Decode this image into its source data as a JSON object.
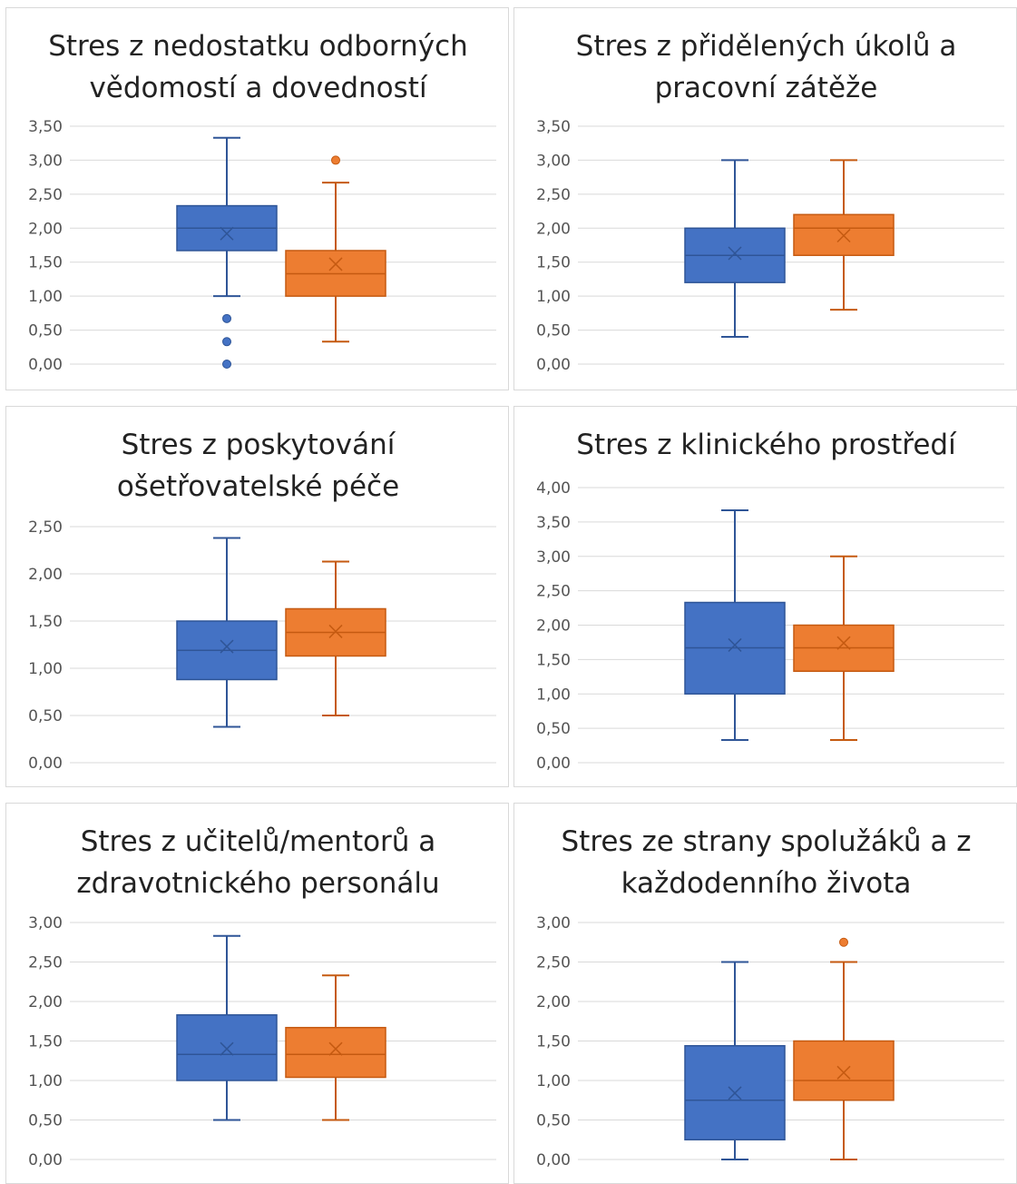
{
  "colors": {
    "series1": "#4472c4",
    "series1_stroke": "#2f5597",
    "series2": "#ed7d31",
    "series2_stroke": "#c55a11",
    "grid": "#d9d9d9"
  },
  "chart_data": [
    {
      "type": "boxplot",
      "title": [
        "Stres z nedostatku odborných",
        "vědomostí a dovedností"
      ],
      "ylim": [
        0,
        3.5
      ],
      "yticks": [
        "0,00",
        "0,50",
        "1,00",
        "1,50",
        "2,00",
        "2,50",
        "3,00",
        "3,50"
      ],
      "ytick_values": [
        0,
        0.5,
        1,
        1.5,
        2,
        2.5,
        3,
        3.5
      ],
      "series": [
        {
          "min": 1.0,
          "q1": 1.67,
          "median": 2.0,
          "q3": 2.33,
          "max": 3.33,
          "mean": 1.92,
          "outliers": [
            0.67,
            0.33,
            0.0
          ]
        },
        {
          "min": 0.33,
          "q1": 1.0,
          "median": 1.33,
          "q3": 1.67,
          "max": 2.67,
          "mean": 1.47,
          "outliers": [
            3.0
          ]
        }
      ]
    },
    {
      "type": "boxplot",
      "title": [
        "Stres z přidělených úkolů a",
        "pracovní zátěže"
      ],
      "ylim": [
        0,
        3.5
      ],
      "yticks": [
        "0,00",
        "0,50",
        "1,00",
        "1,50",
        "2,00",
        "2,50",
        "3,00",
        "3,50"
      ],
      "ytick_values": [
        0,
        0.5,
        1,
        1.5,
        2,
        2.5,
        3,
        3.5
      ],
      "series": [
        {
          "min": 0.4,
          "q1": 1.2,
          "median": 1.6,
          "q3": 2.0,
          "max": 3.0,
          "mean": 1.63,
          "outliers": []
        },
        {
          "min": 0.8,
          "q1": 1.6,
          "median": 2.0,
          "q3": 2.2,
          "max": 3.0,
          "mean": 1.89,
          "outliers": []
        }
      ]
    },
    {
      "type": "boxplot",
      "title": [
        "Stres z poskytování",
        "ošetřovatelské péče"
      ],
      "ylim": [
        0,
        2.5
      ],
      "yticks": [
        "0,00",
        "0,50",
        "1,00",
        "1,50",
        "2,00",
        "2,50"
      ],
      "ytick_values": [
        0,
        0.5,
        1,
        1.5,
        2,
        2.5
      ],
      "series": [
        {
          "min": 0.38,
          "q1": 0.88,
          "median": 1.19,
          "q3": 1.5,
          "max": 2.38,
          "mean": 1.23,
          "outliers": []
        },
        {
          "min": 0.5,
          "q1": 1.13,
          "median": 1.38,
          "q3": 1.63,
          "max": 2.13,
          "mean": 1.39,
          "outliers": []
        }
      ]
    },
    {
      "type": "boxplot",
      "title": [
        "Stres z klinického prostředí"
      ],
      "ylim": [
        0,
        4.0
      ],
      "yticks": [
        "0,00",
        "0,50",
        "1,00",
        "1,50",
        "2,00",
        "2,50",
        "3,00",
        "3,50",
        "4,00"
      ],
      "ytick_values": [
        0,
        0.5,
        1,
        1.5,
        2,
        2.5,
        3,
        3.5,
        4
      ],
      "series": [
        {
          "min": 0.33,
          "q1": 1.0,
          "median": 1.67,
          "q3": 2.33,
          "max": 3.67,
          "mean": 1.71,
          "outliers": []
        },
        {
          "min": 0.33,
          "q1": 1.33,
          "median": 1.67,
          "q3": 2.0,
          "max": 3.0,
          "mean": 1.74,
          "outliers": []
        }
      ]
    },
    {
      "type": "boxplot",
      "title": [
        "Stres z učitelů/mentorů a",
        "zdravotnického personálu"
      ],
      "ylim": [
        0,
        3.0
      ],
      "yticks": [
        "0,00",
        "0,50",
        "1,00",
        "1,50",
        "2,00",
        "2,50",
        "3,00"
      ],
      "ytick_values": [
        0,
        0.5,
        1,
        1.5,
        2,
        2.5,
        3
      ],
      "series": [
        {
          "min": 0.5,
          "q1": 1.0,
          "median": 1.33,
          "q3": 1.83,
          "max": 2.83,
          "mean": 1.4,
          "outliers": []
        },
        {
          "min": 0.5,
          "q1": 1.04,
          "median": 1.33,
          "q3": 1.67,
          "max": 2.33,
          "mean": 1.4,
          "outliers": []
        }
      ]
    },
    {
      "type": "boxplot",
      "title": [
        "Stres ze strany spolužáků a z",
        "každodenního života"
      ],
      "ylim": [
        0,
        3.0
      ],
      "yticks": [
        "0,00",
        "0,50",
        "1,00",
        "1,50",
        "2,00",
        "2,50",
        "3,00"
      ],
      "ytick_values": [
        0,
        0.5,
        1,
        1.5,
        2,
        2.5,
        3
      ],
      "series": [
        {
          "min": 0.0,
          "q1": 0.25,
          "median": 0.75,
          "q3": 1.44,
          "max": 2.5,
          "mean": 0.84,
          "outliers": []
        },
        {
          "min": 0.0,
          "q1": 0.75,
          "median": 1.0,
          "q3": 1.5,
          "max": 2.5,
          "mean": 1.1,
          "outliers": [
            2.75
          ]
        }
      ]
    }
  ]
}
